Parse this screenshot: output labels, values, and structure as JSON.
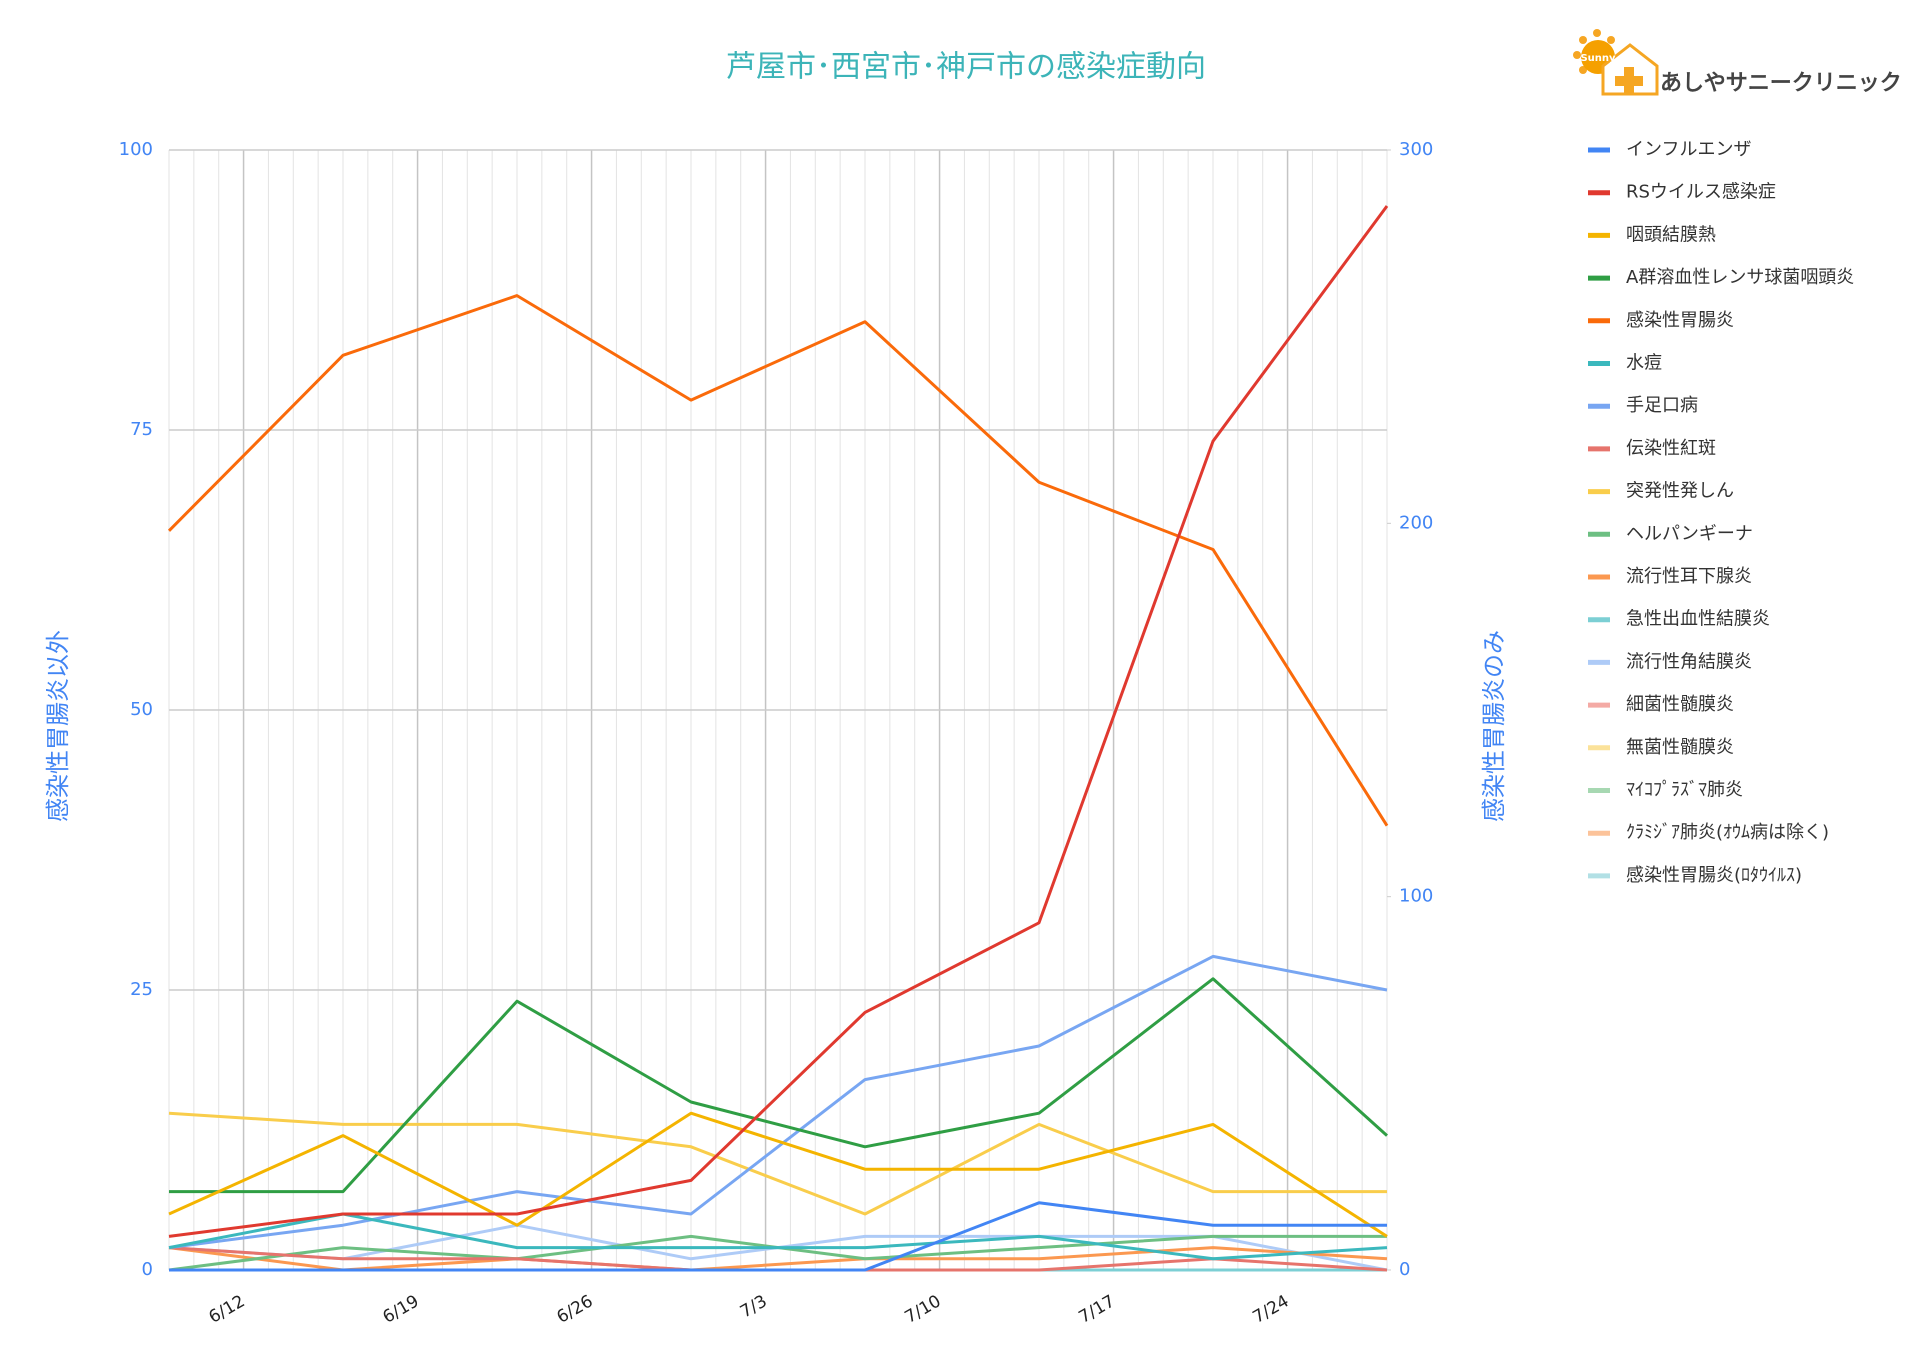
{
  "chart_data": {
    "type": "line",
    "title": "芦屋市･西宮市･神戸市の感染症動向",
    "y_label": "感染性胃腸炎以外",
    "y2_label": "感染性胃腸炎のみ",
    "x": [
      "6/9",
      "6/16",
      "6/23",
      "6/30",
      "7/7",
      "7/14",
      "7/21",
      "7/28"
    ],
    "xlim": [
      "6/9",
      "7/28"
    ],
    "xticks": [
      "6/12",
      "6/19",
      "6/26",
      "7/3",
      "7/10",
      "7/17",
      "7/24"
    ],
    "ylim": [
      0,
      100
    ],
    "yticks": [
      0,
      25,
      50,
      75,
      100
    ],
    "y2lim": [
      0,
      300
    ],
    "y2ticks": [
      0,
      100,
      200,
      300
    ],
    "grid": true,
    "legend": "right",
    "series": [
      {
        "name": "インフルエンザ",
        "color": "#4285f4",
        "values": [
          0,
          0,
          0,
          0,
          0,
          6,
          4,
          4
        ]
      },
      {
        "name": "RSウイルス感染症",
        "color": "#e0392f",
        "values": [
          3,
          5,
          5,
          8,
          23,
          31,
          74,
          95
        ]
      },
      {
        "name": "咽頭結膜熱",
        "color": "#f4b400",
        "values": [
          5,
          12,
          4,
          14,
          9,
          9,
          13,
          3
        ]
      },
      {
        "name": "A群溶血性レンサ球菌咽頭炎",
        "color": "#2f9e44",
        "values": [
          7,
          7,
          24,
          15,
          11,
          14,
          26,
          12
        ]
      },
      {
        "name": "感染性胃腸炎",
        "color": "#fa6a0a",
        "axis": "y2",
        "values": [
          198,
          245,
          261,
          233,
          254,
          211,
          193,
          119
        ]
      },
      {
        "name": "水痘",
        "color": "#3bb8bd",
        "values": [
          2,
          5,
          2,
          2,
          2,
          3,
          1,
          2
        ]
      },
      {
        "name": "手足口病",
        "color": "#78a6f2",
        "values": [
          2,
          4,
          7,
          5,
          17,
          20,
          28,
          25
        ]
      },
      {
        "name": "伝染性紅斑",
        "color": "#e6746c",
        "values": [
          2,
          1,
          1,
          0,
          0,
          0,
          1,
          0
        ]
      },
      {
        "name": "突発性発しん",
        "color": "#f9cd4b",
        "values": [
          14,
          13,
          13,
          11,
          5,
          13,
          7,
          7
        ]
      },
      {
        "name": "ヘルパンギーナ",
        "color": "#6dbf82",
        "values": [
          0,
          2,
          1,
          3,
          1,
          2,
          3,
          3
        ]
      },
      {
        "name": "流行性耳下腺炎",
        "color": "#fb9850",
        "values": [
          2,
          0,
          1,
          0,
          1,
          1,
          2,
          1
        ]
      },
      {
        "name": "急性出血性結膜炎",
        "color": "#7ccfd4",
        "values": [
          0,
          0,
          0,
          0,
          0,
          0,
          0,
          0
        ]
      },
      {
        "name": "流行性角結膜炎",
        "color": "#aecbf7",
        "values": [
          2,
          1,
          4,
          1,
          3,
          3,
          3,
          0
        ]
      },
      {
        "name": "細菌性髄膜炎",
        "color": "#f4aaa5",
        "values": [
          0,
          0,
          0,
          0,
          0,
          0,
          0,
          0
        ]
      },
      {
        "name": "無菌性髄膜炎",
        "color": "#fbe29a",
        "values": [
          0,
          0,
          0,
          0,
          0,
          0,
          0,
          0
        ]
      },
      {
        "name": "ﾏｲｺﾌﾟﾗｽﾞﾏ肺炎",
        "color": "#a7d8b2",
        "values": [
          0,
          0,
          0,
          0,
          0,
          0,
          0,
          0
        ]
      },
      {
        "name": "ｸﾗﾐｼﾞｱ肺炎(ｵｳﾑ病は除く)",
        "color": "#fcc39a",
        "values": [
          0,
          0,
          0,
          0,
          0,
          0,
          0,
          0
        ]
      },
      {
        "name": "感染性胃腸炎(ﾛﾀｳｲﾙｽ)",
        "color": "#b2e0e5",
        "values": [
          0,
          0,
          0,
          0,
          0,
          0,
          0,
          0
        ]
      }
    ]
  },
  "logo": {
    "badge": "Sunny",
    "name": "あしやサニークリニック"
  }
}
